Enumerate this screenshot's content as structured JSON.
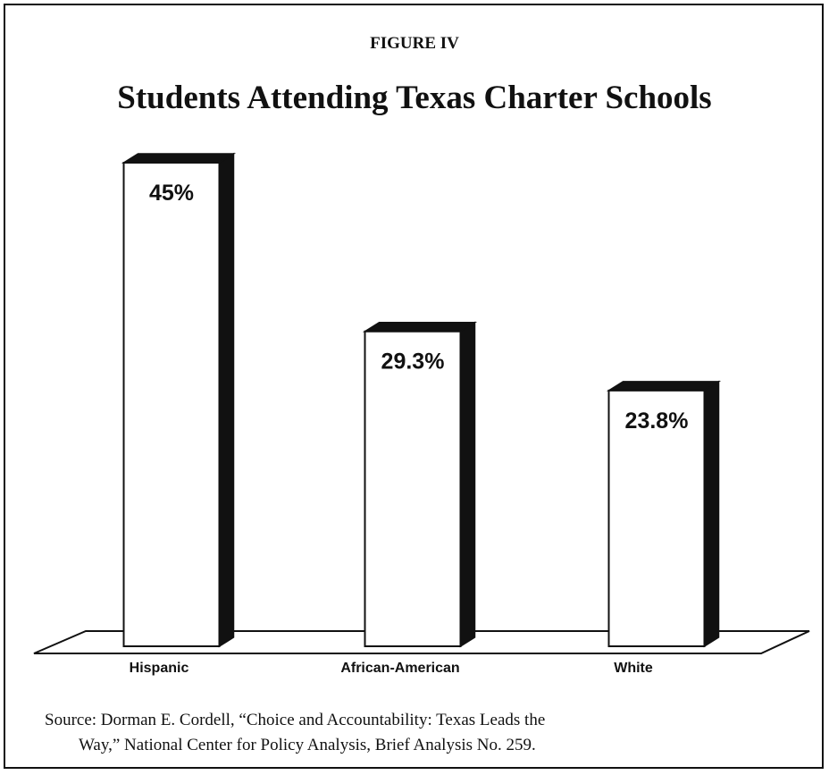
{
  "figure_label": "FIGURE IV",
  "source": {
    "line1": "Source: Dorman E. Cordell, “Choice and Accountability: Texas Leads the",
    "line2": "Way,” National Center  for Policy Analysis, Brief Analysis No. 259."
  },
  "chart_data": {
    "type": "bar",
    "title": "Students Attending Texas Charter Schools",
    "categories": [
      "Hispanic",
      "African-American",
      "White"
    ],
    "values": [
      45,
      29.3,
      23.8
    ],
    "value_labels": [
      "45%",
      "29.3%",
      "23.8%"
    ],
    "ylim": [
      0,
      50
    ],
    "grid": false,
    "style": "3d-bar",
    "colors": {
      "bar_face": "#ffffff",
      "bar_side": "#111111",
      "outline": "#111111"
    }
  }
}
